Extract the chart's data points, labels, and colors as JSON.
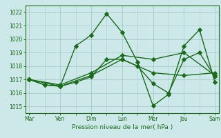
{
  "xlabel_bottom": "Pression niveau de la mer( hPa )",
  "bg_color": "#cce8e8",
  "grid_color": "#aacccc",
  "line_color": "#1a6b1a",
  "ylim": [
    1014.5,
    1022.5
  ],
  "yticks": [
    1015,
    1016,
    1017,
    1018,
    1019,
    1020,
    1021,
    1022
  ],
  "day_labels": [
    "Mar",
    "Ven",
    "Dim",
    "Lun",
    "Mer",
    "Jeu",
    "Sam"
  ],
  "day_positions": [
    0,
    16,
    32,
    48,
    64,
    80,
    96
  ],
  "xlim": [
    -2,
    98
  ],
  "line1_x": [
    0,
    8,
    16,
    24,
    32,
    40,
    48,
    56,
    64,
    72,
    80,
    88,
    96
  ],
  "line1_y": [
    1017.0,
    1016.6,
    1016.5,
    1019.5,
    1020.3,
    1021.9,
    1020.5,
    1018.3,
    1015.05,
    1015.9,
    1019.5,
    1020.7,
    1016.8
  ],
  "line2_x": [
    0,
    8,
    16,
    24,
    32,
    40,
    48,
    56,
    64,
    72,
    80,
    88,
    96
  ],
  "line2_y": [
    1017.0,
    1016.6,
    1016.5,
    1016.8,
    1017.2,
    1018.5,
    1018.5,
    1018.0,
    1016.7,
    1016.0,
    1018.5,
    1019.0,
    1017.2
  ],
  "line3_x": [
    0,
    16,
    32,
    48,
    64,
    80,
    96
  ],
  "line3_y": [
    1017.0,
    1016.5,
    1017.3,
    1018.5,
    1017.5,
    1017.3,
    1017.5
  ],
  "line4_x": [
    0,
    16,
    32,
    48,
    64,
    80,
    96
  ],
  "line4_y": [
    1017.0,
    1016.6,
    1017.5,
    1018.8,
    1018.5,
    1019.0,
    1017.3
  ]
}
